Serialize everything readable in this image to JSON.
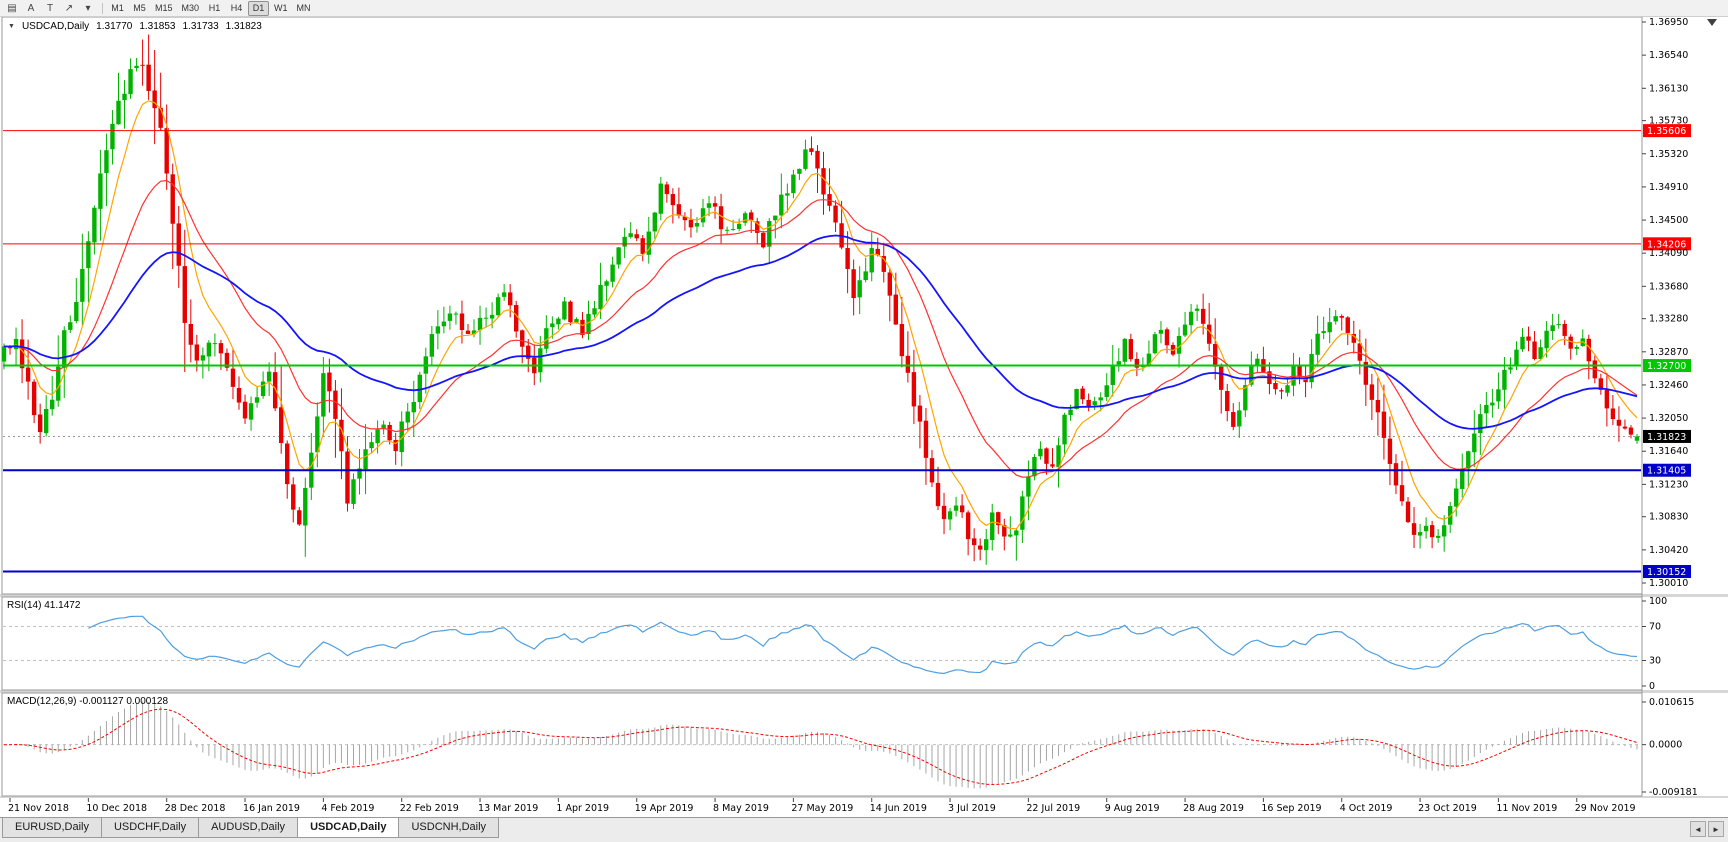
{
  "toolbar": {
    "icons": [
      {
        "name": "chart-list-icon",
        "glyph": "▤"
      },
      {
        "name": "arrow-mode-button",
        "glyph": "A"
      },
      {
        "name": "text-tool-button",
        "glyph": "T"
      },
      {
        "name": "trendline-tool-button",
        "glyph": "↗"
      },
      {
        "name": "tools-dropdown-caret",
        "glyph": "▾"
      }
    ],
    "timeframes": [
      "M1",
      "M5",
      "M15",
      "M30",
      "H1",
      "H4",
      "D1",
      "W1",
      "MN"
    ],
    "active_timeframe": "D1"
  },
  "chart_data": {
    "type": "candlestick",
    "symbol_label": "USDCAD,Daily",
    "caret_glyph": "▼",
    "ohlc": {
      "open": "1.31770",
      "high": "1.31853",
      "low": "1.31733",
      "close": "1.31823"
    },
    "last_ohlc_values": [
      1.3177,
      1.31853,
      1.31733,
      1.31823
    ],
    "candle_count": 272,
    "y_range": {
      "top": 1.3695,
      "bottom": 1.3001
    },
    "price_axis_labels": [
      "1.36950",
      "1.36540",
      "1.36130",
      "1.35730",
      "1.35320",
      "1.34910",
      "1.34500",
      "1.34090",
      "1.33680",
      "1.33280",
      "1.32870",
      "1.32460",
      "1.32050",
      "1.31640",
      "1.31230",
      "1.30830",
      "1.30420",
      "1.30010"
    ],
    "levels": [
      {
        "value": 1.35606,
        "label": "1.35606",
        "color": "#ff0000",
        "width": 1
      },
      {
        "value": 1.34206,
        "label": "1.34206",
        "color": "#ff0000",
        "width": 1
      },
      {
        "value": 1.327,
        "label": "1.32700",
        "color": "#00c800",
        "width": 2
      },
      {
        "value": 1.31405,
        "label": "1.31405",
        "color": "#0000c8",
        "width": 2
      },
      {
        "value": 1.30152,
        "label": "1.30152",
        "color": "#0000c8",
        "width": 2
      }
    ],
    "current_price": {
      "value": 1.31823,
      "label": "1.31823"
    },
    "x_labels": [
      {
        "label": "21 Nov 2018",
        "i": 1
      },
      {
        "label": "10 Dec 2018",
        "i": 14
      },
      {
        "label": "28 Dec 2018",
        "i": 27
      },
      {
        "label": "16 Jan 2019",
        "i": 40
      },
      {
        "label": "4 Feb 2019",
        "i": 53
      },
      {
        "label": "22 Feb 2019",
        "i": 66
      },
      {
        "label": "13 Mar 2019",
        "i": 79
      },
      {
        "label": "1 Apr 2019",
        "i": 92
      },
      {
        "label": "19 Apr 2019",
        "i": 105
      },
      {
        "label": "8 May 2019",
        "i": 118
      },
      {
        "label": "27 May 2019",
        "i": 131
      },
      {
        "label": "14 Jun 2019",
        "i": 144
      },
      {
        "label": "3 Jul 2019",
        "i": 157
      },
      {
        "label": "22 Jul 2019",
        "i": 170
      },
      {
        "label": "9 Aug 2019",
        "i": 183
      },
      {
        "label": "28 Aug 2019",
        "i": 196
      },
      {
        "label": "16 Sep 2019",
        "i": 209
      },
      {
        "label": "4 Oct 2019",
        "i": 222
      },
      {
        "label": "23 Oct 2019",
        "i": 235
      },
      {
        "label": "11 Nov 2019",
        "i": 248
      },
      {
        "label": "29 Nov 2019",
        "i": 261
      }
    ],
    "close_waypoints": [
      [
        0,
        1.3285
      ],
      [
        2,
        1.33
      ],
      [
        4,
        1.3245
      ],
      [
        6,
        1.3185
      ],
      [
        8,
        1.323
      ],
      [
        10,
        1.331
      ],
      [
        12,
        1.3355
      ],
      [
        14,
        1.342
      ],
      [
        16,
        1.351
      ],
      [
        18,
        1.3575
      ],
      [
        20,
        1.3615
      ],
      [
        22,
        1.3648
      ],
      [
        24,
        1.3618
      ],
      [
        26,
        1.3562
      ],
      [
        28,
        1.345
      ],
      [
        30,
        1.333
      ],
      [
        32,
        1.327
      ],
      [
        34,
        1.3305
      ],
      [
        36,
        1.3282
      ],
      [
        38,
        1.3252
      ],
      [
        40,
        1.3212
      ],
      [
        42,
        1.3238
      ],
      [
        44,
        1.3262
      ],
      [
        46,
        1.3175
      ],
      [
        48,
        1.3088
      ],
      [
        49,
        1.3072
      ],
      [
        51,
        1.316
      ],
      [
        53,
        1.3252
      ],
      [
        55,
        1.3212
      ],
      [
        57,
        1.3108
      ],
      [
        59,
        1.3142
      ],
      [
        62,
        1.3198
      ],
      [
        65,
        1.3172
      ],
      [
        68,
        1.3232
      ],
      [
        71,
        1.3302
      ],
      [
        74,
        1.3342
      ],
      [
        77,
        1.3312
      ],
      [
        80,
        1.3332
      ],
      [
        83,
        1.3356
      ],
      [
        86,
        1.3298
      ],
      [
        88,
        1.3262
      ],
      [
        90,
        1.3322
      ],
      [
        93,
        1.3342
      ],
      [
        96,
        1.3312
      ],
      [
        99,
        1.3362
      ],
      [
        101,
        1.3402
      ],
      [
        104,
        1.3442
      ],
      [
        106,
        1.3402
      ],
      [
        109,
        1.3492
      ],
      [
        111,
        1.3462
      ],
      [
        114,
        1.3432
      ],
      [
        117,
        1.3472
      ],
      [
        120,
        1.3432
      ],
      [
        123,
        1.3452
      ],
      [
        126,
        1.3422
      ],
      [
        129,
        1.3482
      ],
      [
        131,
        1.3502
      ],
      [
        134,
        1.3542
      ],
      [
        136,
        1.3482
      ],
      [
        139,
        1.3422
      ],
      [
        141,
        1.3352
      ],
      [
        144,
        1.3412
      ],
      [
        146,
        1.3392
      ],
      [
        148,
        1.3312
      ],
      [
        150,
        1.3262
      ],
      [
        152,
        1.3192
      ],
      [
        154,
        1.3122
      ],
      [
        156,
        1.3082
      ],
      [
        158,
        1.3098
      ],
      [
        160,
        1.3062
      ],
      [
        162,
        1.3036
      ],
      [
        164,
        1.3082
      ],
      [
        166,
        1.3056
      ],
      [
        168,
        1.3072
      ],
      [
        170,
        1.3132
      ],
      [
        172,
        1.3166
      ],
      [
        174,
        1.3142
      ],
      [
        176,
        1.3202
      ],
      [
        178,
        1.3246
      ],
      [
        180,
        1.3216
      ],
      [
        182,
        1.3236
      ],
      [
        184,
        1.3262
      ],
      [
        186,
        1.3302
      ],
      [
        188,
        1.3262
      ],
      [
        190,
        1.3292
      ],
      [
        192,
        1.3312
      ],
      [
        194,
        1.3292
      ],
      [
        196,
        1.3312
      ],
      [
        198,
        1.3346
      ],
      [
        200,
        1.3302
      ],
      [
        202,
        1.3232
      ],
      [
        204,
        1.3192
      ],
      [
        206,
        1.3242
      ],
      [
        208,
        1.3282
      ],
      [
        210,
        1.3252
      ],
      [
        212,
        1.3232
      ],
      [
        214,
        1.3272
      ],
      [
        216,
        1.3252
      ],
      [
        218,
        1.3302
      ],
      [
        220,
        1.3322
      ],
      [
        222,
        1.3332
      ],
      [
        224,
        1.3302
      ],
      [
        226,
        1.3252
      ],
      [
        228,
        1.3212
      ],
      [
        230,
        1.3152
      ],
      [
        232,
        1.3102
      ],
      [
        234,
        1.3066
      ],
      [
        236,
        1.3076
      ],
      [
        238,
        1.3052
      ],
      [
        240,
        1.3092
      ],
      [
        242,
        1.3142
      ],
      [
        244,
        1.3182
      ],
      [
        246,
        1.3222
      ],
      [
        248,
        1.3242
      ],
      [
        250,
        1.3272
      ],
      [
        252,
        1.3302
      ],
      [
        254,
        1.3282
      ],
      [
        256,
        1.3306
      ],
      [
        258,
        1.3316
      ],
      [
        260,
        1.3292
      ],
      [
        262,
        1.3296
      ],
      [
        264,
        1.3262
      ],
      [
        266,
        1.3222
      ],
      [
        268,
        1.3192
      ],
      [
        270,
        1.3178
      ],
      [
        271,
        1.31823
      ]
    ],
    "moving_averages": [
      {
        "name": "ma-fast",
        "period": 7,
        "color": "#ffa500"
      },
      {
        "name": "ma-medium",
        "period": 21,
        "color": "#ff3232"
      },
      {
        "name": "ma-slow",
        "period": 50,
        "color": "#1414ff"
      }
    ]
  },
  "indicators": {
    "rsi": {
      "label": "RSI(14) 41.1472",
      "period": 14,
      "axis_labels": [
        "100",
        "70",
        "30",
        "0"
      ],
      "guide_levels": [
        70,
        30
      ],
      "line_color": "#4d9ee0"
    },
    "macd": {
      "label": "MACD(12,26,9) -0.001127 0.000128",
      "fast": 12,
      "slow": 26,
      "signal": 9,
      "axis_labels": [
        "0.010615",
        "0.0000",
        "-0.009181"
      ],
      "hist_color": "#a6a6a6",
      "signal_color": "#ff0000"
    }
  },
  "tabs": [
    {
      "label": "EURUSD,Daily",
      "active": false
    },
    {
      "label": "USDCHF,Daily",
      "active": false
    },
    {
      "label": "AUDUSD,Daily",
      "active": false
    },
    {
      "label": "USDCAD,Daily",
      "active": true
    },
    {
      "label": "USDCNH,Daily",
      "active": false
    }
  ],
  "tab_scroll": {
    "left": "◄",
    "right": "►"
  },
  "colors": {
    "up": "#00b300",
    "down": "#e60000",
    "panel_bg": "#ffffff",
    "frame": "#9a9a9a",
    "separator": "#d6d6d6",
    "axis_text": "#000000",
    "guide_dash": "#c0c0c0",
    "current_price_badge": "#000000"
  }
}
